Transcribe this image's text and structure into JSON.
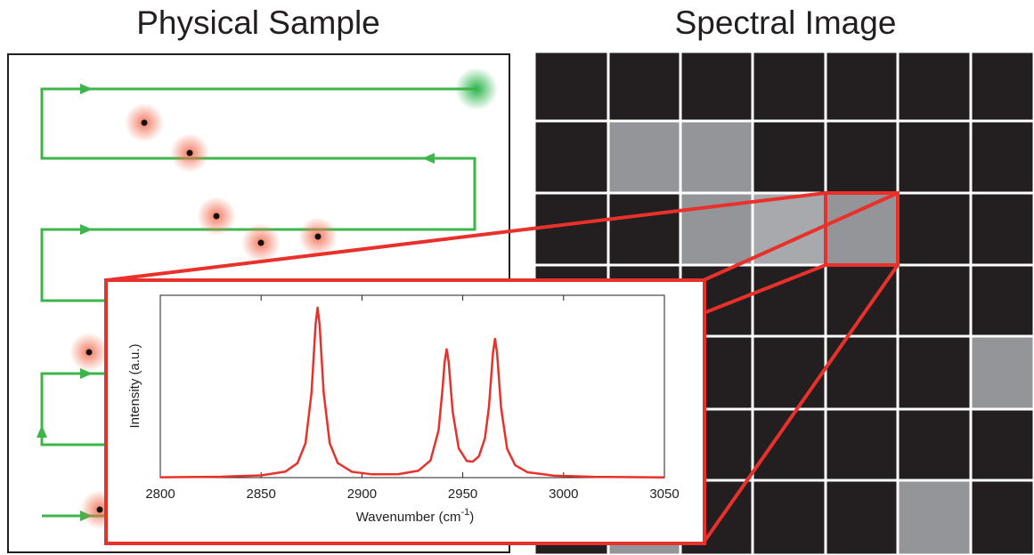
{
  "header": {
    "left_title": "Physical Sample",
    "right_title": "Spectral Image"
  },
  "chart_data": {
    "type": "line",
    "x_label": {
      "text": "Wavenumber (cm",
      "superscript": "-1",
      "suffix": ")"
    },
    "y_label": "Intensity (a.u.)",
    "x": [
      2800,
      2830,
      2850,
      2862,
      2868,
      2872,
      2875,
      2877,
      2878,
      2879,
      2881,
      2884,
      2888,
      2895,
      2905,
      2918,
      2928,
      2934,
      2938,
      2940,
      2941,
      2942,
      2943,
      2945,
      2948,
      2952,
      2955,
      2958,
      2961,
      2963,
      2965,
      2966,
      2967,
      2969,
      2972,
      2976,
      2982,
      2995,
      3015,
      3050
    ],
    "series": [
      {
        "color": "#e8312a",
        "values": [
          0.002,
          0.005,
          0.012,
          0.033,
          0.079,
          0.188,
          0.467,
          0.839,
          0.932,
          0.84,
          0.468,
          0.189,
          0.08,
          0.032,
          0.018,
          0.019,
          0.038,
          0.094,
          0.259,
          0.49,
          0.634,
          0.704,
          0.636,
          0.362,
          0.16,
          0.091,
          0.088,
          0.117,
          0.216,
          0.39,
          0.687,
          0.761,
          0.686,
          0.384,
          0.158,
          0.068,
          0.03,
          0.011,
          0.004,
          0.001
        ]
      }
    ],
    "xlim": [
      2800,
      3050
    ],
    "xticks": [
      2800,
      2850,
      2900,
      2950,
      3000,
      3050
    ],
    "ylim": [
      0,
      1
    ]
  }
}
